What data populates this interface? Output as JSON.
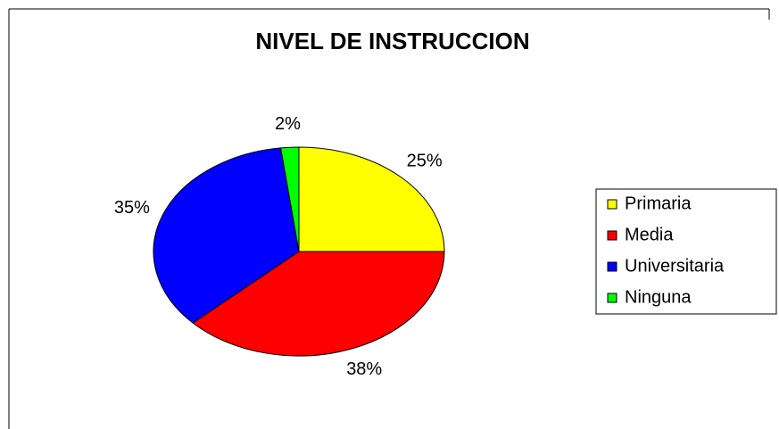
{
  "chart_data": {
    "type": "pie",
    "title": "NIVEL DE INSTRUCCION",
    "categories": [
      "Primaria",
      "Media",
      "Universitaria",
      "Ninguna"
    ],
    "values": [
      25,
      38,
      35,
      2
    ],
    "value_labels": [
      "25%",
      "38%",
      "35%",
      "2%"
    ],
    "colors": [
      "#ffff00",
      "#ff0000",
      "#0000ff",
      "#00ff00"
    ],
    "legend": "right"
  }
}
